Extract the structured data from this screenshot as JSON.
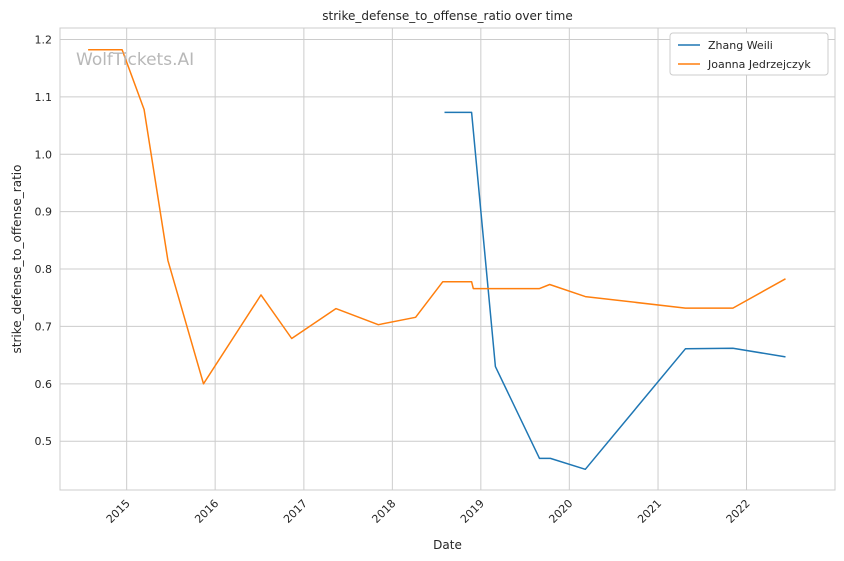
{
  "chart_data": {
    "type": "line",
    "title": "strike_defense_to_offense_ratio over time",
    "xlabel": "Date",
    "ylabel": "strike_defense_to_offense_ratio",
    "watermark": "WolfTickets.AI",
    "xlim": [
      "2014-04-01",
      "2023-01-01"
    ],
    "ylim": [
      0.415,
      1.22
    ],
    "x_ticks": [
      "2015-01-01",
      "2016-01-01",
      "2017-01-01",
      "2018-01-01",
      "2019-01-01",
      "2020-01-01",
      "2021-01-01",
      "2022-01-01"
    ],
    "x_tick_labels": [
      "2015",
      "2016",
      "2017",
      "2018",
      "2019",
      "2020",
      "2021",
      "2022"
    ],
    "y_ticks": [
      0.5,
      0.6,
      0.7,
      0.8,
      0.9,
      1.0,
      1.1,
      1.2
    ],
    "y_tick_labels": [
      "0.5",
      "0.6",
      "0.7",
      "0.8",
      "0.9",
      "1.0",
      "1.1",
      "1.2"
    ],
    "grid": true,
    "legend_position": "top-right",
    "series": [
      {
        "name": "Zhang Weili",
        "color": "#1f77b4",
        "points": [
          [
            "2018-08-04",
            1.073
          ],
          [
            "2018-11-24",
            1.073
          ],
          [
            "2019-03-02",
            0.63
          ],
          [
            "2019-08-31",
            0.47
          ],
          [
            "2019-10-15",
            0.47
          ],
          [
            "2020-03-07",
            0.451
          ],
          [
            "2021-04-24",
            0.661
          ],
          [
            "2021-11-06",
            0.662
          ],
          [
            "2022-06-11",
            0.647
          ]
        ]
      },
      {
        "name": "Joanna Jedrzejczyk",
        "color": "#ff7f0e",
        "points": [
          [
            "2014-07-26",
            1.182
          ],
          [
            "2014-12-13",
            1.182
          ],
          [
            "2015-03-14",
            1.078
          ],
          [
            "2015-06-20",
            0.815
          ],
          [
            "2015-11-14",
            0.6
          ],
          [
            "2016-07-08",
            0.755
          ],
          [
            "2016-11-12",
            0.679
          ],
          [
            "2017-05-13",
            0.731
          ],
          [
            "2017-11-04",
            0.703
          ],
          [
            "2018-04-07",
            0.716
          ],
          [
            "2018-07-28",
            0.778
          ],
          [
            "2018-11-24",
            0.778
          ],
          [
            "2018-12-01",
            0.766
          ],
          [
            "2019-08-31",
            0.766
          ],
          [
            "2019-10-12",
            0.773
          ],
          [
            "2020-03-07",
            0.752
          ],
          [
            "2021-04-24",
            0.732
          ],
          [
            "2021-11-06",
            0.732
          ],
          [
            "2022-06-11",
            0.783
          ]
        ]
      }
    ]
  }
}
